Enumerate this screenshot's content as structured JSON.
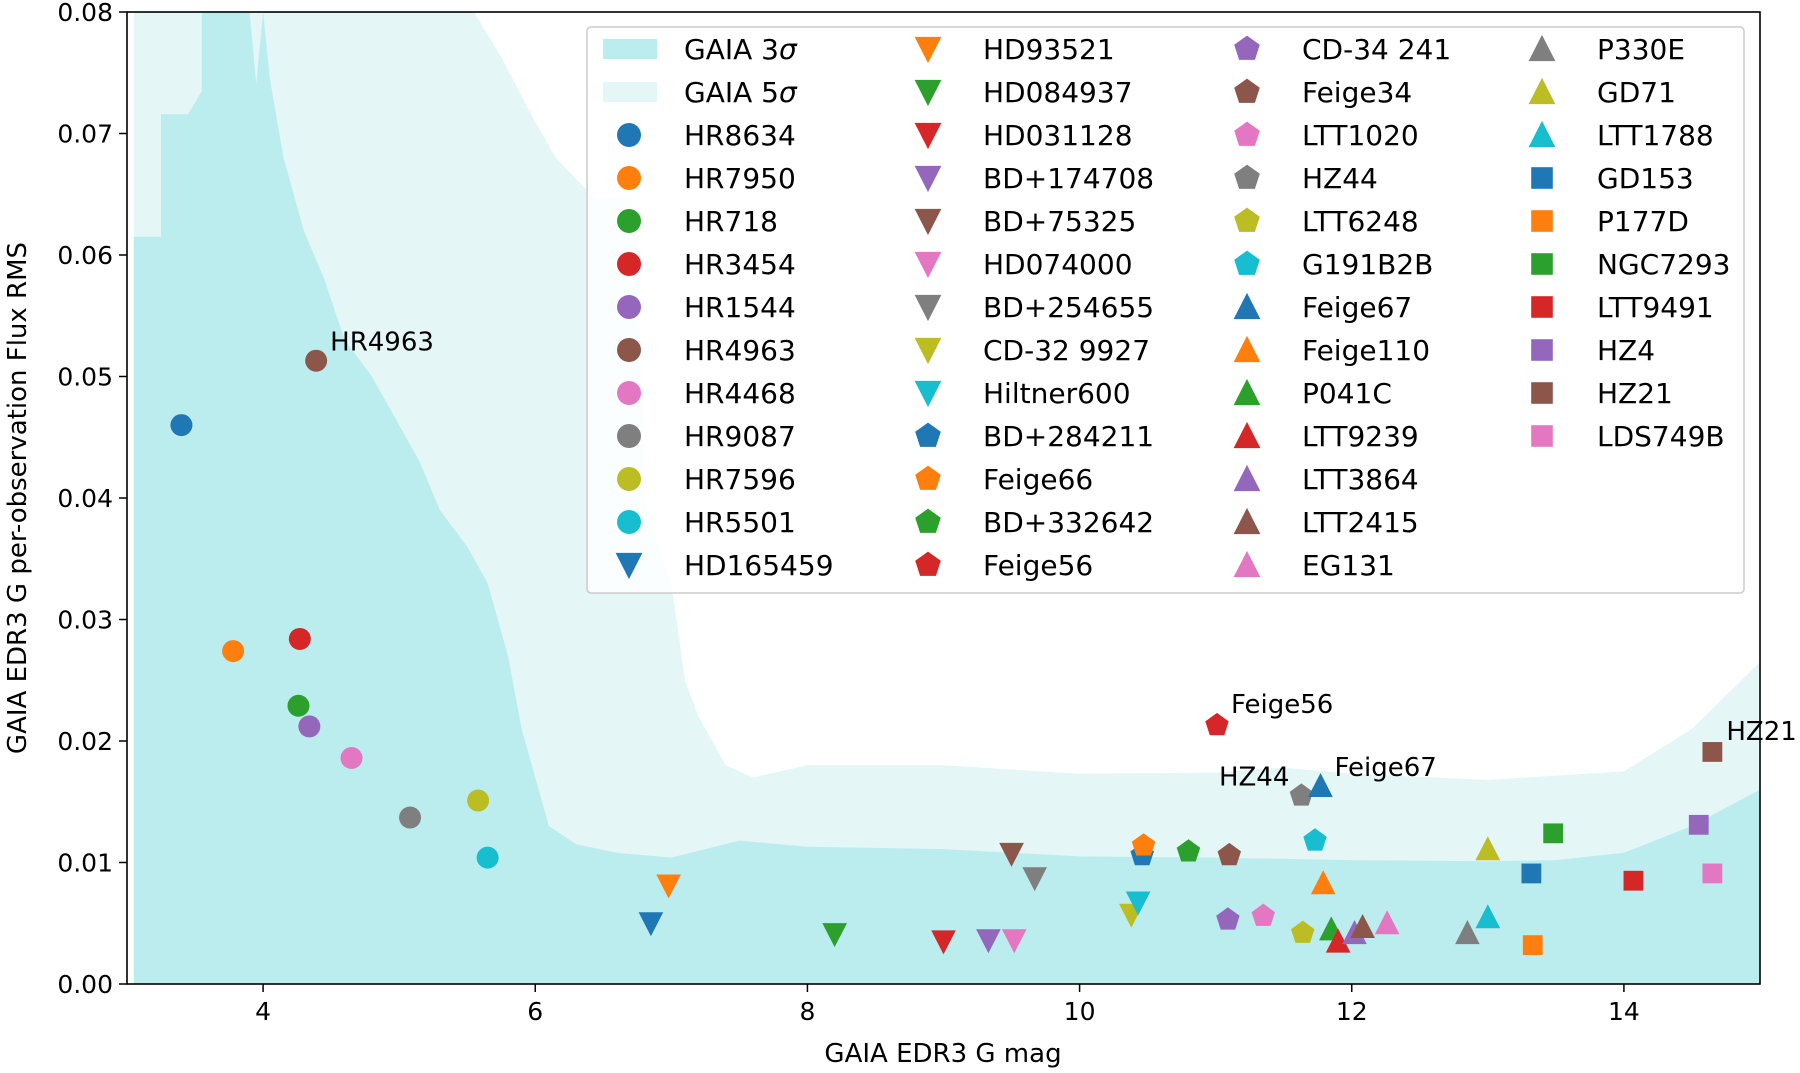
{
  "chart_data": {
    "type": "scatter",
    "title": "",
    "xlabel": "GAIA EDR3 G mag",
    "ylabel": "GAIA EDR3 G per-observation Flux RMS",
    "xlim": [
      3,
      15
    ],
    "ylim": [
      0,
      0.08
    ],
    "xticks": [
      4,
      6,
      8,
      10,
      12,
      14
    ],
    "xtick_labels": [
      "4",
      "6",
      "8",
      "10",
      "12",
      "14"
    ],
    "yticks": [
      0,
      0.01,
      0.02,
      0.03,
      0.04,
      0.05,
      0.06,
      0.07,
      0.08
    ],
    "ytick_labels": [
      "0.00",
      "0.01",
      "0.02",
      "0.03",
      "0.04",
      "0.05",
      "0.06",
      "0.07",
      "0.08"
    ],
    "grid": false,
    "legend_position": "top-right",
    "bands": [
      {
        "name": "GAIA 3",
        "sym": "σ",
        "color": "#bcedee",
        "points": [
          [
            3.05,
            0.0615
          ],
          [
            3.25,
            0.0615
          ],
          [
            3.25,
            0.0716
          ],
          [
            3.45,
            0.0716
          ],
          [
            3.55,
            0.0735
          ],
          [
            3.55,
            0.08
          ],
          [
            3.9,
            0.08
          ],
          [
            3.95,
            0.0741
          ],
          [
            4.0,
            0.08
          ],
          [
            4.05,
            0.0745
          ],
          [
            4.15,
            0.068
          ],
          [
            4.3,
            0.062
          ],
          [
            4.45,
            0.058
          ],
          [
            4.6,
            0.053
          ],
          [
            4.8,
            0.05
          ],
          [
            5.0,
            0.046
          ],
          [
            5.15,
            0.043
          ],
          [
            5.3,
            0.039
          ],
          [
            5.5,
            0.036
          ],
          [
            5.65,
            0.033
          ],
          [
            5.8,
            0.027
          ],
          [
            5.9,
            0.021
          ],
          [
            6.0,
            0.017
          ],
          [
            6.1,
            0.013
          ],
          [
            6.3,
            0.0115
          ],
          [
            6.6,
            0.0108
          ],
          [
            7.0,
            0.0104
          ],
          [
            7.5,
            0.0118
          ],
          [
            8.0,
            0.0113
          ],
          [
            9.0,
            0.0111
          ],
          [
            10.0,
            0.0105
          ],
          [
            11.0,
            0.0104
          ],
          [
            12.0,
            0.0102
          ],
          [
            13.0,
            0.0101
          ],
          [
            13.5,
            0.0102
          ],
          [
            14.0,
            0.0108
          ],
          [
            14.5,
            0.013
          ],
          [
            15.0,
            0.016
          ]
        ]
      },
      {
        "name": "GAIA 5",
        "sym": "σ",
        "color": "#e4f6f6",
        "points": [
          [
            3.05,
            0.08
          ],
          [
            5.55,
            0.08
          ],
          [
            5.75,
            0.0763
          ],
          [
            5.95,
            0.072
          ],
          [
            6.15,
            0.068
          ],
          [
            6.45,
            0.0645
          ],
          [
            6.7,
            0.065
          ],
          [
            6.75,
            0.061
          ],
          [
            6.8,
            0.04
          ],
          [
            6.9,
            0.036
          ],
          [
            7.0,
            0.033
          ],
          [
            7.1,
            0.025
          ],
          [
            7.2,
            0.022
          ],
          [
            7.4,
            0.018
          ],
          [
            7.6,
            0.017
          ],
          [
            8.0,
            0.018
          ],
          [
            9.0,
            0.018
          ],
          [
            10.0,
            0.0173
          ],
          [
            11.0,
            0.0174
          ],
          [
            11.5,
            0.0178
          ],
          [
            12.0,
            0.0173
          ],
          [
            13.0,
            0.0168
          ],
          [
            14.0,
            0.0175
          ],
          [
            14.5,
            0.021
          ],
          [
            15.0,
            0.0265
          ]
        ]
      }
    ],
    "series": [
      {
        "name": "HR8634",
        "marker": "circle",
        "color": "#1f77b4",
        "x": 3.4,
        "y": 0.046
      },
      {
        "name": "HR7950",
        "marker": "circle",
        "color": "#ff7f0e",
        "x": 3.78,
        "y": 0.0274
      },
      {
        "name": "HR718",
        "marker": "circle",
        "color": "#2ca02c",
        "x": 4.26,
        "y": 0.0229
      },
      {
        "name": "HR3454",
        "marker": "circle",
        "color": "#d62728",
        "x": 4.27,
        "y": 0.0284
      },
      {
        "name": "HR1544",
        "marker": "circle",
        "color": "#9467bd",
        "x": 4.34,
        "y": 0.0212
      },
      {
        "name": "HR4963",
        "marker": "circle",
        "color": "#8c564b",
        "x": 4.39,
        "y": 0.0513
      },
      {
        "name": "HR4468",
        "marker": "circle",
        "color": "#e377c2",
        "x": 4.65,
        "y": 0.0186
      },
      {
        "name": "HR9087",
        "marker": "circle",
        "color": "#7f7f7f",
        "x": 5.08,
        "y": 0.0137
      },
      {
        "name": "HR7596",
        "marker": "circle",
        "color": "#bcbd22",
        "x": 5.58,
        "y": 0.0151
      },
      {
        "name": "HR5501",
        "marker": "circle",
        "color": "#17becf",
        "x": 5.65,
        "y": 0.0104
      },
      {
        "name": "HD165459",
        "marker": "triangle-down",
        "color": "#1f77b4",
        "x": 6.85,
        "y": 0.005
      },
      {
        "name": "HD93521",
        "marker": "triangle-down",
        "color": "#ff7f0e",
        "x": 6.98,
        "y": 0.0081
      },
      {
        "name": "HD084937",
        "marker": "triangle-down",
        "color": "#2ca02c",
        "x": 8.2,
        "y": 0.0041
      },
      {
        "name": "HD031128",
        "marker": "triangle-down",
        "color": "#d62728",
        "x": 9.0,
        "y": 0.0035
      },
      {
        "name": "BD+174708",
        "marker": "triangle-down",
        "color": "#9467bd",
        "x": 9.33,
        "y": 0.0036
      },
      {
        "name": "BD+75325",
        "marker": "triangle-down",
        "color": "#8c564b",
        "x": 9.5,
        "y": 0.0107
      },
      {
        "name": "HD074000",
        "marker": "triangle-down",
        "color": "#e377c2",
        "x": 9.52,
        "y": 0.0036
      },
      {
        "name": "BD+254655",
        "marker": "triangle-down",
        "color": "#7f7f7f",
        "x": 9.67,
        "y": 0.0087
      },
      {
        "name": "CD-32 9927",
        "marker": "triangle-down",
        "color": "#bcbd22",
        "x": 10.38,
        "y": 0.0057
      },
      {
        "name": "Hiltner600",
        "marker": "triangle-down",
        "color": "#17becf",
        "x": 10.43,
        "y": 0.0067
      },
      {
        "name": "BD+284211",
        "marker": "pentagon",
        "color": "#1f77b4",
        "x": 10.46,
        "y": 0.0106
      },
      {
        "name": "Feige66",
        "marker": "pentagon",
        "color": "#ff7f0e",
        "x": 10.47,
        "y": 0.0114
      },
      {
        "name": "BD+332642",
        "marker": "pentagon",
        "color": "#2ca02c",
        "x": 10.8,
        "y": 0.0109
      },
      {
        "name": "Feige56",
        "marker": "pentagon",
        "color": "#d62728",
        "x": 11.01,
        "y": 0.0213
      },
      {
        "name": "CD-34 241",
        "marker": "pentagon",
        "color": "#9467bd",
        "x": 11.09,
        "y": 0.0053
      },
      {
        "name": "Feige34",
        "marker": "pentagon",
        "color": "#8c564b",
        "x": 11.1,
        "y": 0.0106
      },
      {
        "name": "LTT1020",
        "marker": "pentagon",
        "color": "#e377c2",
        "x": 11.35,
        "y": 0.0056
      },
      {
        "name": "HZ44",
        "marker": "pentagon",
        "color": "#7f7f7f",
        "x": 11.63,
        "y": 0.0155
      },
      {
        "name": "LTT6248",
        "marker": "pentagon",
        "color": "#bcbd22",
        "x": 11.64,
        "y": 0.0042
      },
      {
        "name": "G191B2B",
        "marker": "pentagon",
        "color": "#17becf",
        "x": 11.73,
        "y": 0.0118
      },
      {
        "name": "Feige67",
        "marker": "triangle-up",
        "color": "#1f77b4",
        "x": 11.77,
        "y": 0.0163
      },
      {
        "name": "Feige110",
        "marker": "triangle-up",
        "color": "#ff7f0e",
        "x": 11.79,
        "y": 0.0083
      },
      {
        "name": "P041C",
        "marker": "triangle-up",
        "color": "#2ca02c",
        "x": 11.85,
        "y": 0.0045
      },
      {
        "name": "LTT9239",
        "marker": "triangle-up",
        "color": "#d62728",
        "x": 11.9,
        "y": 0.0035
      },
      {
        "name": "LTT3864",
        "marker": "triangle-up",
        "color": "#9467bd",
        "x": 12.02,
        "y": 0.0042
      },
      {
        "name": "LTT2415",
        "marker": "triangle-up",
        "color": "#8c564b",
        "x": 12.08,
        "y": 0.0047
      },
      {
        "name": "EG131",
        "marker": "triangle-up",
        "color": "#e377c2",
        "x": 12.26,
        "y": 0.005
      },
      {
        "name": "P330E",
        "marker": "triangle-up",
        "color": "#7f7f7f",
        "x": 12.85,
        "y": 0.0042
      },
      {
        "name": "GD71",
        "marker": "triangle-up",
        "color": "#bcbd22",
        "x": 13.0,
        "y": 0.0111
      },
      {
        "name": "LTT1788",
        "marker": "triangle-up",
        "color": "#17becf",
        "x": 13.0,
        "y": 0.0055
      },
      {
        "name": "GD153",
        "marker": "square",
        "color": "#1f77b4",
        "x": 13.32,
        "y": 0.0091
      },
      {
        "name": "P177D",
        "marker": "square",
        "color": "#ff7f0e",
        "x": 13.33,
        "y": 0.0032
      },
      {
        "name": "NGC7293",
        "marker": "square",
        "color": "#2ca02c",
        "x": 13.48,
        "y": 0.0124
      },
      {
        "name": "LTT9491",
        "marker": "square",
        "color": "#d62728",
        "x": 14.07,
        "y": 0.0085
      },
      {
        "name": "HZ4",
        "marker": "square",
        "color": "#9467bd",
        "x": 14.55,
        "y": 0.0131
      },
      {
        "name": "HZ21",
        "marker": "square",
        "color": "#8c564b",
        "x": 14.65,
        "y": 0.0191
      },
      {
        "name": "LDS749B",
        "marker": "square",
        "color": "#e377c2",
        "x": 14.65,
        "y": 0.0091
      }
    ],
    "annotations": [
      {
        "text": "HR4963",
        "x": 4.39,
        "y": 0.0513,
        "anchor": "start",
        "dx": 14,
        "dy": -10
      },
      {
        "text": "Feige56",
        "x": 11.01,
        "y": 0.0213,
        "anchor": "start",
        "dx": 14,
        "dy": -12
      },
      {
        "text": "HZ44",
        "x": 11.63,
        "y": 0.0155,
        "anchor": "end",
        "dx": -12,
        "dy": -10
      },
      {
        "text": "Feige67",
        "x": 11.77,
        "y": 0.0163,
        "anchor": "start",
        "dx": 14,
        "dy": -10
      },
      {
        "text": "HZ21",
        "x": 14.65,
        "y": 0.0191,
        "anchor": "start",
        "dx": 14,
        "dy": -12
      }
    ]
  }
}
